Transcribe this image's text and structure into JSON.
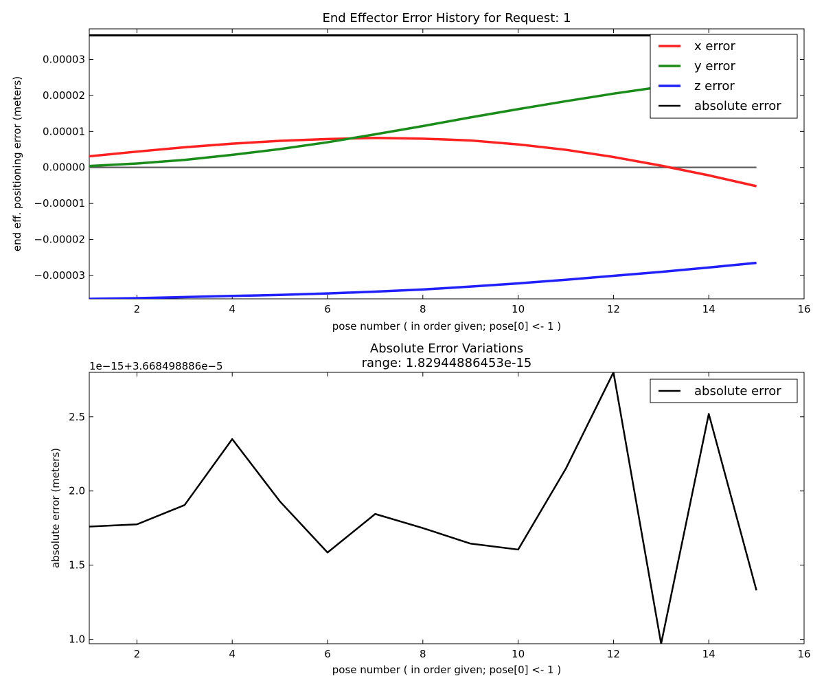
{
  "chart_data": [
    {
      "type": "line",
      "title": "End Effector Error History for Request: 1",
      "xlabel": "pose number ( in order given; pose[0] <- 1 )",
      "ylabel": "end eff. positioning error (meters)",
      "xlim": [
        1,
        16
      ],
      "ylim": [
        -3.65e-05,
        3.85e-05
      ],
      "xticks": [
        2,
        4,
        6,
        8,
        10,
        12,
        14,
        16
      ],
      "yticks": [
        -3e-05,
        -2e-05,
        -1e-05,
        0.0,
        1e-05,
        2e-05,
        3e-05
      ],
      "ytick_labels": [
        "−0.00003",
        "−0.00002",
        "−0.00001",
        "0.00000",
        "0.00001",
        "0.00002",
        "0.00003"
      ],
      "grid": false,
      "legend_position": "top-right",
      "x": [
        1,
        2,
        3,
        4,
        5,
        6,
        7,
        8,
        9,
        10,
        11,
        12,
        13,
        14,
        15
      ],
      "series": [
        {
          "name": "x error",
          "color": "#ff2020",
          "values": [
            3.1e-06,
            4.4e-06,
            5.6e-06,
            6.6e-06,
            7.4e-06,
            7.9e-06,
            8.2e-06,
            8e-06,
            7.5e-06,
            6.4e-06,
            4.9e-06,
            2.9e-06,
            5e-07,
            -2.2e-06,
            -5.2e-06
          ]
        },
        {
          "name": "y error",
          "color": "#1a8c1a",
          "values": [
            4e-07,
            1.1e-06,
            2.1e-06,
            3.5e-06,
            5.1e-06,
            7e-06,
            9.2e-06,
            1.15e-05,
            1.39e-05,
            1.62e-05,
            1.84e-05,
            2.05e-05,
            2.24e-05,
            2.42e-05,
            2.58e-05
          ]
        },
        {
          "name": "z error",
          "color": "#2020ff",
          "values": [
            -3.65e-05,
            -3.63e-05,
            -3.6e-05,
            -3.57e-05,
            -3.54e-05,
            -3.5e-05,
            -3.45e-05,
            -3.39e-05,
            -3.31e-05,
            -3.22e-05,
            -3.12e-05,
            -3.01e-05,
            -2.9e-05,
            -2.78e-05,
            -2.65e-05
          ]
        },
        {
          "name": "absolute error",
          "color": "#000000",
          "values": [
            3.668e-05,
            3.668e-05,
            3.668e-05,
            3.668e-05,
            3.668e-05,
            3.668e-05,
            3.668e-05,
            3.668e-05,
            3.668e-05,
            3.668e-05,
            3.668e-05,
            3.668e-05,
            3.668e-05,
            3.668e-05,
            3.668e-05
          ]
        },
        {
          "color": "#666666",
          "values": [
            0,
            0,
            0,
            0,
            0,
            0,
            0,
            0,
            0,
            0,
            0,
            0,
            0,
            0,
            0
          ]
        }
      ]
    },
    {
      "type": "line",
      "title": "Absolute Error Variations",
      "subtitle": "range: 1.82944886453e-15",
      "offset_text": "1e−15+3.668498886e−5",
      "xlabel": "pose number ( in order given; pose[0] <- 1 )",
      "ylabel": "absolute error (meters)",
      "xlim": [
        1,
        16
      ],
      "ylim": [
        0.97,
        2.8
      ],
      "xticks": [
        2,
        4,
        6,
        8,
        10,
        12,
        14,
        16
      ],
      "yticks": [
        1.0,
        1.5,
        2.0,
        2.5
      ],
      "ytick_labels": [
        "1.0",
        "1.5",
        "2.0",
        "2.5"
      ],
      "grid": false,
      "legend_position": "top-right",
      "x": [
        1,
        2,
        3,
        4,
        5,
        6,
        7,
        8,
        9,
        10,
        11,
        12,
        13,
        14,
        15
      ],
      "series": [
        {
          "name": "absolute error",
          "color": "#000000",
          "values": [
            1.76,
            1.775,
            1.905,
            2.35,
            1.93,
            1.585,
            1.845,
            1.75,
            1.645,
            1.605,
            2.15,
            2.8,
            0.97,
            2.52,
            1.33
          ]
        }
      ]
    }
  ]
}
